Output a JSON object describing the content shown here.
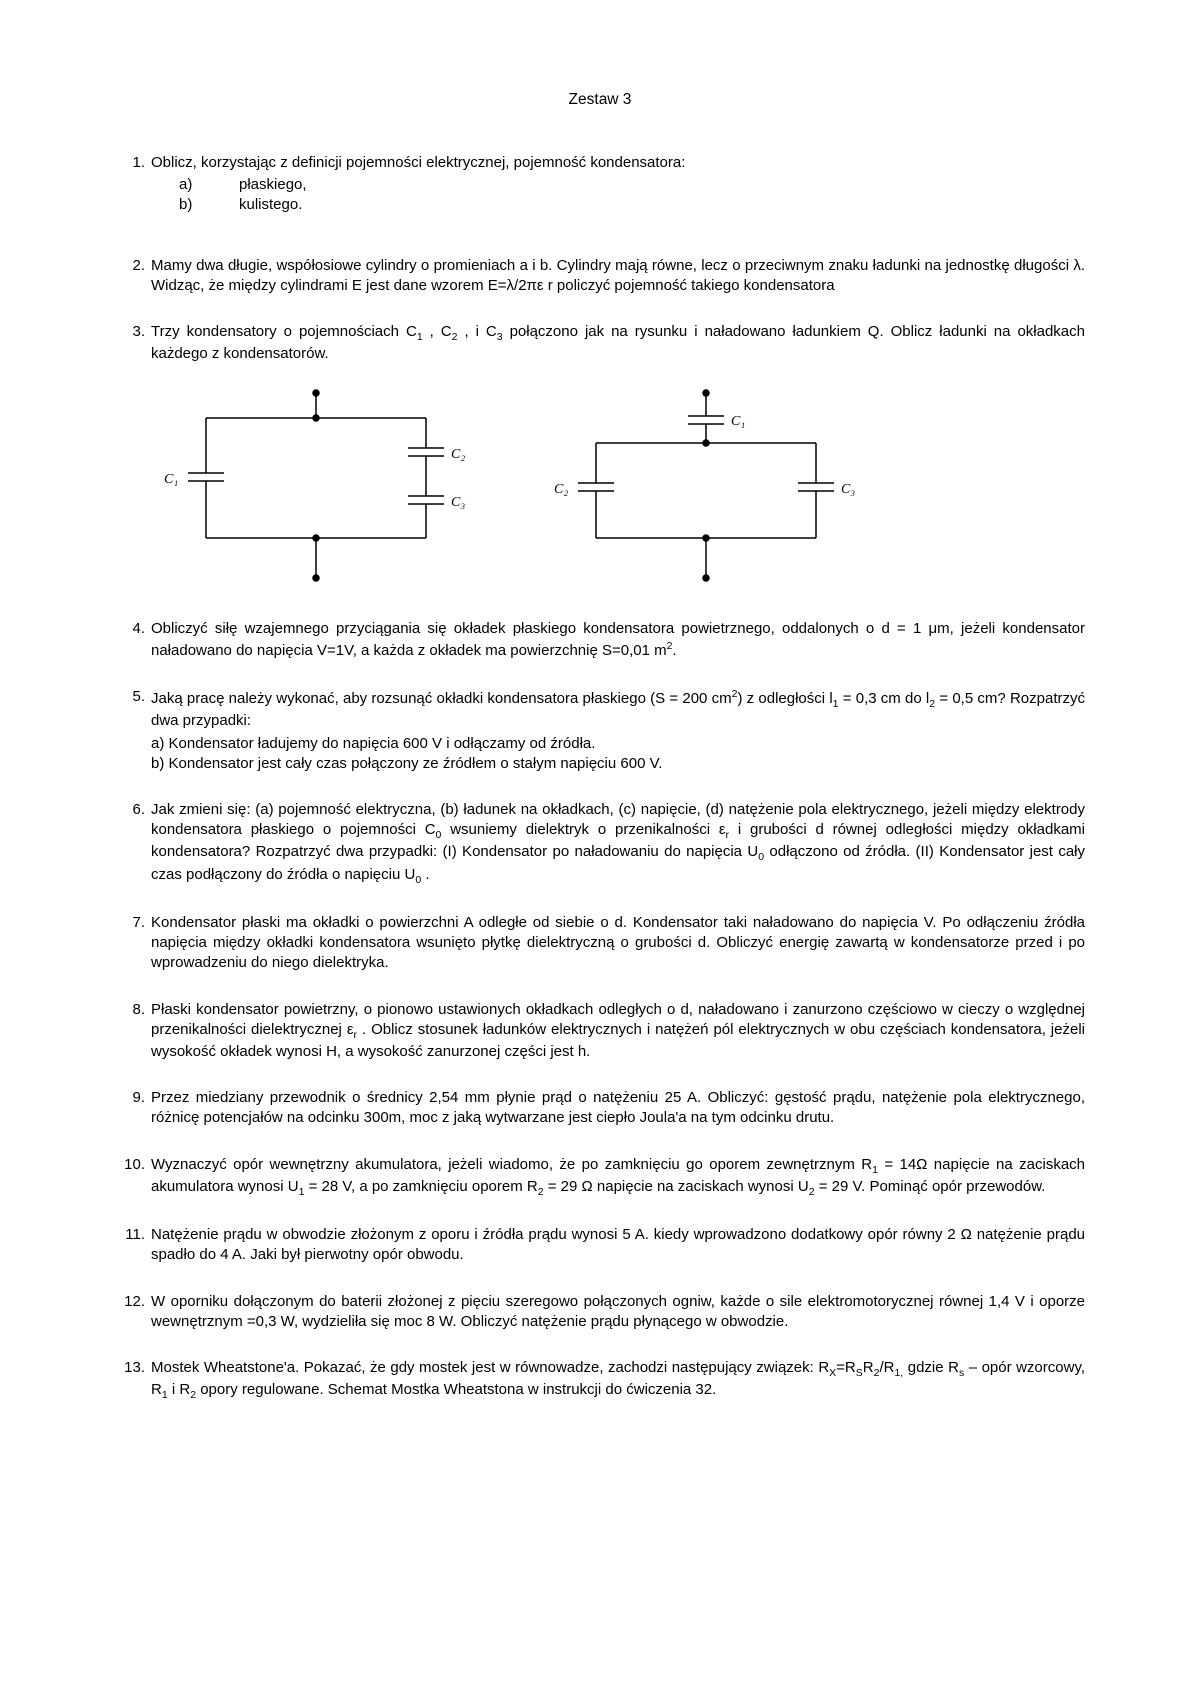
{
  "title": "Zestaw 3",
  "problems": [
    {
      "num": "1.",
      "text": "Oblicz, korzystając z definicji pojemności elektrycznej, pojemność kondensatora:",
      "subitems": [
        {
          "letter": "a)",
          "text": "płaskiego,"
        },
        {
          "letter": "b)",
          "text": "kulistego."
        }
      ]
    },
    {
      "num": "2.",
      "text": "Mamy dwa długie, współosiowe cylindry o promieniach a i b. Cylindry mają równe, lecz o przeciwnym znaku ładunki na jednostkę długości λ. Widząc, że między cylindrami E jest dane wzorem E=λ/2πε r policzyć pojemność takiego kondensatora"
    },
    {
      "num": "3.",
      "text_html": "Trzy kondensatory o pojemnościach C<sub class='sub'>1</sub> , C<sub class='sub'>2</sub> , i C<sub class='sub'>3</sub> połączono jak na rysunku i naładowano ładunkiem Q. Oblicz ładunki na okładkach każdego z kondensatorów.",
      "has_diagrams": true,
      "diagram_labels": {
        "C1": "C₁",
        "C2": "C₂",
        "C3": "C₃"
      },
      "diagram_style": {
        "stroke": "#000000",
        "stroke_width": 1.5,
        "font_size": 14
      }
    },
    {
      "num": "4.",
      "text_html": "Obliczyć siłę wzajemnego przyciągania się okładek płaskiego kondensatora powietrznego, oddalonych o d = 1 μm, jeżeli kondensator naładowano do napięcia V=1V, a każda z okładek ma powierzchnię S=0,01 m<sup class='sup'>2</sup>."
    },
    {
      "num": "5.",
      "text_html": "Jaką pracę należy wykonać, aby rozsunąć okładki kondensatora płaskiego (S = 200 cm<sup class='sup'>2</sup>) z odległości l<sub class='sub'>1</sub> = 0,3 cm do l<sub class='sub'>2</sub> = 0,5 cm? Rozpatrzyć dwa przypadki:",
      "cases": [
        "a) Kondensator ładujemy do napięcia 600 V i odłączamy od źródła.",
        "b) Kondensator jest cały czas połączony ze źródłem o stałym napięciu 600 V."
      ]
    },
    {
      "num": "6.",
      "text_html": "Jak zmieni się: (a) pojemność elektryczna, (b) ładunek na okładkach, (c) napięcie, (d) natężenie pola elektrycznego, jeżeli między elektrody kondensatora płaskiego o pojemności C<sub class='sub'>0</sub> wsuniemy dielektryk o przenikalności  ε<sub class='sub'>r</sub> i grubości d równej odległości między okładkami kondensatora? Rozpatrzyć dwa przypadki: (I) Kondensator po naładowaniu do napięcia U<sub class='sub'>0</sub> odłączono od źródła. (II) Kondensator jest cały czas podłączony do źródła o napięciu U<sub class='sub'>0</sub> ."
    },
    {
      "num": "7.",
      "text": "Kondensator płaski ma okładki o powierzchni A odległe od siebie o d. Kondensator taki naładowano do napięcia V. Po odłączeniu źródła napięcia między okładki kondensatora wsunięto płytkę dielektryczną o grubości d. Obliczyć energię zawartą w kondensatorze przed i po wprowadzeniu do niego dielektryka."
    },
    {
      "num": "8.",
      "text_html": "Płaski kondensator powietrzny, o pionowo ustawionych okładkach odległych o d, naładowano i zanurzono częściowo w cieczy o względnej przenikalności dielektrycznej ε<sub class='sub'>r</sub> . Oblicz stosunek ładunków elektrycznych i natężeń pól elektrycznych w obu częściach kondensatora, jeżeli wysokość okładek wynosi H, a wysokość zanurzonej części jest h."
    },
    {
      "num": "9.",
      "text": "Przez miedziany przewodnik o średnicy 2,54 mm płynie prąd o natężeniu 25 A. Obliczyć: gęstość prądu, natężenie pola elektrycznego, różnicę potencjałów na odcinku 300m, moc z jaką wytwarzane jest ciepło Joula'a na tym odcinku drutu."
    },
    {
      "num": "10.",
      "text_html": "Wyznaczyć opór wewnętrzny akumulatora, jeżeli wiadomo, że po zamknięciu go oporem zewnętrznym R<sub class='sub'>1</sub> = 14Ω napięcie na zaciskach akumulatora wynosi U<sub class='sub'>1</sub> = 28 V, a po zamknięciu oporem R<sub class='sub'>2</sub> = 29 Ω napięcie na zaciskach wynosi U<sub class='sub'>2</sub> = 29 V. Pominąć opór przewodów."
    },
    {
      "num": "11.",
      "text": "Natężenie prądu w obwodzie złożonym z oporu i źródła prądu wynosi 5 A. kiedy wprowadzono dodatkowy opór równy 2 Ω natężenie prądu spadło do 4 A. Jaki był pierwotny opór obwodu."
    },
    {
      "num": "12.",
      "text": "W oporniku dołączonym do baterii złożonej z pięciu szeregowo połączonych ogniw, każde o sile elektromotorycznej równej 1,4 V i oporze wewnętrznym =0,3 W, wydzieliła się moc 8 W. Obliczyć natężenie prądu płynącego w obwodzie."
    },
    {
      "num": "13.",
      "text_html": "Mostek Wheatstone'a. Pokazać, że gdy mostek jest w równowadze, zachodzi następujący związek: R<sub class='sub'>X</sub>=R<sub class='sub'>S</sub>R<sub class='sub'>2</sub>/R<sub class='sub'>1,</sub> gdzie R<sub class='sub'>s</sub> – opór wzorcowy, R<sub class='sub'>1</sub> i R<sub class='sub'>2</sub> opory regulowane. Schemat Mostka Wheatstona w instrukcji do ćwiczenia 32."
    }
  ]
}
